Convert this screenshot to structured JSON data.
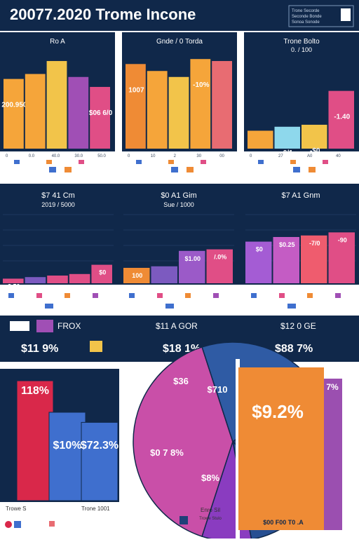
{
  "header": {
    "title": "20077.2020 Trome Incone",
    "legend_lines": [
      "Trone Secorde",
      "Seconde Bonde",
      "Sonoa Sonode"
    ]
  },
  "panels_row1": [
    {
      "title": "Ro A",
      "bars": [
        {
          "label": "200.950",
          "value": 70,
          "color": "#f5a53a"
        },
        {
          "label": "",
          "value": 75,
          "color": "#f5a53a"
        },
        {
          "label": "",
          "value": 88,
          "color": "#f2c44a"
        },
        {
          "label": "",
          "value": 72,
          "color": "#a04fb5"
        },
        {
          "label": "$06 6/0",
          "value": 62,
          "color": "#e04e86"
        }
      ],
      "tick_labels": [
        "0",
        "0.0",
        "40.0",
        "30.0",
        "50.0"
      ]
    },
    {
      "title": "Gnde / 0 Torda",
      "bars": [
        {
          "label": "1007",
          "value": 85,
          "color": "#ef8b35"
        },
        {
          "label": "",
          "value": 78,
          "color": "#f5a53a"
        },
        {
          "label": "",
          "value": 72,
          "color": "#f2c44a"
        },
        {
          "label": "-10%",
          "value": 90,
          "color": "#f5a53a"
        },
        {
          "label": "",
          "value": 88,
          "color": "#e86c72"
        }
      ],
      "tick_labels": [
        "0",
        "10",
        "2",
        "30",
        "00"
      ]
    },
    {
      "title": "Trone Bolto",
      "subtitle": "0. / 100",
      "bars": [
        {
          "label": "2/0",
          "value": 18,
          "color": "#f5a53a"
        },
        {
          "label": "0/1",
          "value": 22,
          "color": "#8ed8ec"
        },
        {
          "label": "-$0",
          "value": 24,
          "color": "#f2c44a"
        },
        {
          "label": "-1.40",
          "value": 58,
          "color": "#e04e86"
        }
      ],
      "tick_labels": [
        "0",
        "27",
        "A0",
        "40"
      ]
    }
  ],
  "panels_row2": [
    {
      "title": "$7 41 Cm",
      "subtitle": "2019 / 5000",
      "bars": [
        {
          "label": "3.50",
          "value": 6,
          "color": "#e04e86"
        },
        {
          "label": "",
          "value": 8,
          "color": "#7c5ac0"
        },
        {
          "label": "",
          "value": 10,
          "color": "#e04e86"
        },
        {
          "label": "",
          "value": 12,
          "color": "#e04e86"
        },
        {
          "label": "$0",
          "value": 24,
          "color": "#e04e86"
        }
      ]
    },
    {
      "title": "$0 A1 Gim",
      "subtitle": "Sue / 1000",
      "bars": [
        {
          "label": "100",
          "value": 20,
          "color": "#ef8b35"
        },
        {
          "label": "",
          "value": 22,
          "color": "#7c5ac0"
        },
        {
          "label": "$1.00",
          "value": 42,
          "color": "#9b5ac8"
        },
        {
          "label": "/.0%",
          "value": 44,
          "color": "#e04e86"
        }
      ]
    },
    {
      "title": "$7 A1 Gnm",
      "bars": [
        {
          "label": "$0",
          "value": 54,
          "color": "#a45cd4"
        },
        {
          "label": "$0.25",
          "value": 60,
          "color": "#c45cc4"
        },
        {
          "label": "-7/0",
          "value": 62,
          "color": "#ef5c6e"
        },
        {
          "label": "-90",
          "value": 66,
          "color": "#e04e86"
        }
      ]
    }
  ],
  "kpi_bar": {
    "items": [
      {
        "label": "FROX",
        "value": "$11 9%"
      },
      {
        "label": "$11 A GOR",
        "value": "$18 1%"
      },
      {
        "label": "$12 0 GE",
        "value": "$88 7%"
      }
    ]
  },
  "bottom_left": {
    "bars": [
      {
        "label": "118%",
        "value": 95,
        "color": "#d9284a"
      },
      {
        "label": "$10%",
        "value": 70,
        "color": "#3f6fce"
      },
      {
        "label": "$72.3%",
        "value": 62,
        "color": "#3f6fce"
      }
    ],
    "legend": [
      "Trowe S",
      "Trone 1001"
    ]
  },
  "bottom_pie": {
    "slices": [
      {
        "label": "$0 7 8%",
        "value": 40,
        "color": "#c94fa8"
      },
      {
        "label": "$8%",
        "value": 20,
        "color": "#2f5ba4"
      },
      {
        "label": "$710",
        "value": 22,
        "color": "#1f3f78"
      },
      {
        "label": "$36",
        "value": 10,
        "color": "#274f92"
      },
      {
        "label": "",
        "value": 8,
        "color": "#8a3cc0"
      }
    ],
    "legend": [
      "Enro Sil",
      "Trowe Stulo"
    ]
  },
  "bottom_right": {
    "value_label": "$9.2%",
    "side_label": "7%",
    "foot_label": "$00 F00 T0 .A",
    "main_color": "#ef8b35",
    "side_color": "#9b4fb0"
  }
}
